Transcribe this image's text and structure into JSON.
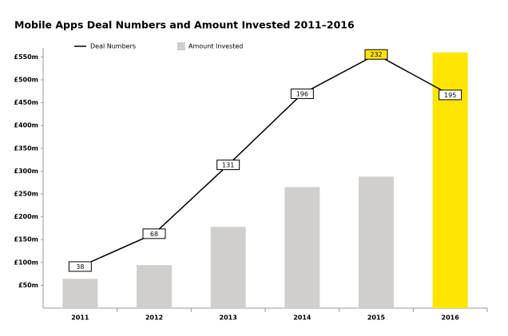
{
  "chart_data": {
    "type": "bar",
    "title": "Mobile Apps Deal Numbers and Amount Invested 2011–2016",
    "categories": [
      "2011",
      "2012",
      "2013",
      "2014",
      "2015",
      "2016"
    ],
    "series": [
      {
        "name": "Amount Invested",
        "type": "bar",
        "color": "#d0cfcd",
        "colors": [
          "#d0cfcd",
          "#d0cfcd",
          "#d0cfcd",
          "#d0cfcd",
          "#d0cfcd",
          "#ffe600"
        ],
        "values": [
          64,
          94,
          178,
          265,
          288,
          560
        ]
      },
      {
        "name": "Deal Numbers",
        "type": "line",
        "axis": "y2",
        "color": "#000000",
        "label_colors": [
          "#ffffff",
          "#ffffff",
          "#ffffff",
          "#ffffff",
          "#ffe600",
          "#ffffff"
        ],
        "values": [
          38,
          68,
          131,
          196,
          232,
          195
        ]
      }
    ],
    "ylim": [
      0,
      570
    ],
    "yticks": [
      {
        "value": 50,
        "label": "£50m"
      },
      {
        "value": 100,
        "label": "£100m"
      },
      {
        "value": 150,
        "label": "£150m"
      },
      {
        "value": 200,
        "label": "£200m"
      },
      {
        "value": 250,
        "label": "£250m"
      },
      {
        "value": 300,
        "label": "£300m"
      },
      {
        "value": 350,
        "label": "£350m"
      },
      {
        "value": 400,
        "label": "£400m"
      },
      {
        "value": 450,
        "label": "£450m"
      },
      {
        "value": 500,
        "label": "£500m"
      },
      {
        "value": 550,
        "label": "£550m"
      }
    ],
    "y2lim": [
      0,
      238
    ],
    "grid": false
  }
}
